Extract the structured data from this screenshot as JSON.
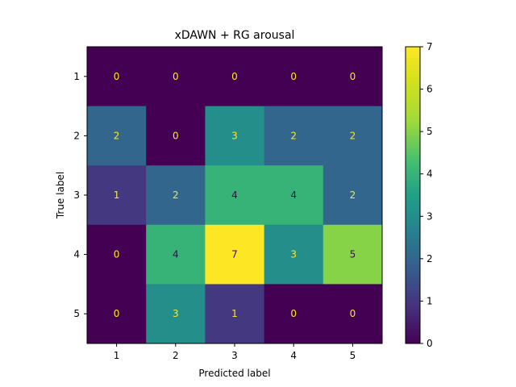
{
  "chart_data": {
    "type": "heatmap",
    "title": "xDAWN + RG arousal",
    "xlabel": "Predicted label",
    "ylabel": "True label",
    "x_categories": [
      "1",
      "2",
      "3",
      "4",
      "5"
    ],
    "y_categories": [
      "1",
      "2",
      "3",
      "4",
      "5"
    ],
    "matrix": [
      [
        0,
        0,
        0,
        0,
        0
      ],
      [
        2,
        0,
        3,
        2,
        2
      ],
      [
        1,
        2,
        4,
        4,
        2
      ],
      [
        0,
        4,
        7,
        3,
        5
      ],
      [
        0,
        3,
        1,
        0,
        0
      ]
    ],
    "colormap": "viridis",
    "color_range": [
      0,
      7
    ],
    "colorbar_ticks": [
      "0",
      "1",
      "2",
      "3",
      "4",
      "5",
      "6",
      "7"
    ],
    "cell_label_colors": {
      "dark": "#fde725",
      "light": "#440154"
    }
  }
}
